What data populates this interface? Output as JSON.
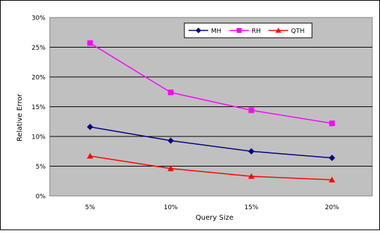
{
  "chart_data": {
    "type": "line",
    "title": "",
    "xlabel": "Query Size",
    "ylabel": "Relative Error",
    "categories": [
      "5%",
      "10%",
      "15%",
      "20%"
    ],
    "ylim": [
      0,
      30
    ],
    "yticks": [
      "0%",
      "5%",
      "10%",
      "15%",
      "20%",
      "25%",
      "30%"
    ],
    "grid": "horizontal",
    "legend": "top-center, inside plot",
    "series": [
      {
        "name": "MH",
        "values": [
          11.6,
          9.3,
          7.5,
          6.4
        ],
        "color": "#000080",
        "marker": "diamond"
      },
      {
        "name": "RH",
        "values": [
          25.7,
          17.4,
          14.4,
          12.2
        ],
        "color": "#ff00ff",
        "marker": "square"
      },
      {
        "name": "QTH",
        "values": [
          6.7,
          4.6,
          3.3,
          2.7
        ],
        "color": "#ff0000",
        "marker": "triangle"
      }
    ]
  },
  "colors": {
    "plot_background": "#c0c0c0",
    "gridline": "#000000"
  }
}
